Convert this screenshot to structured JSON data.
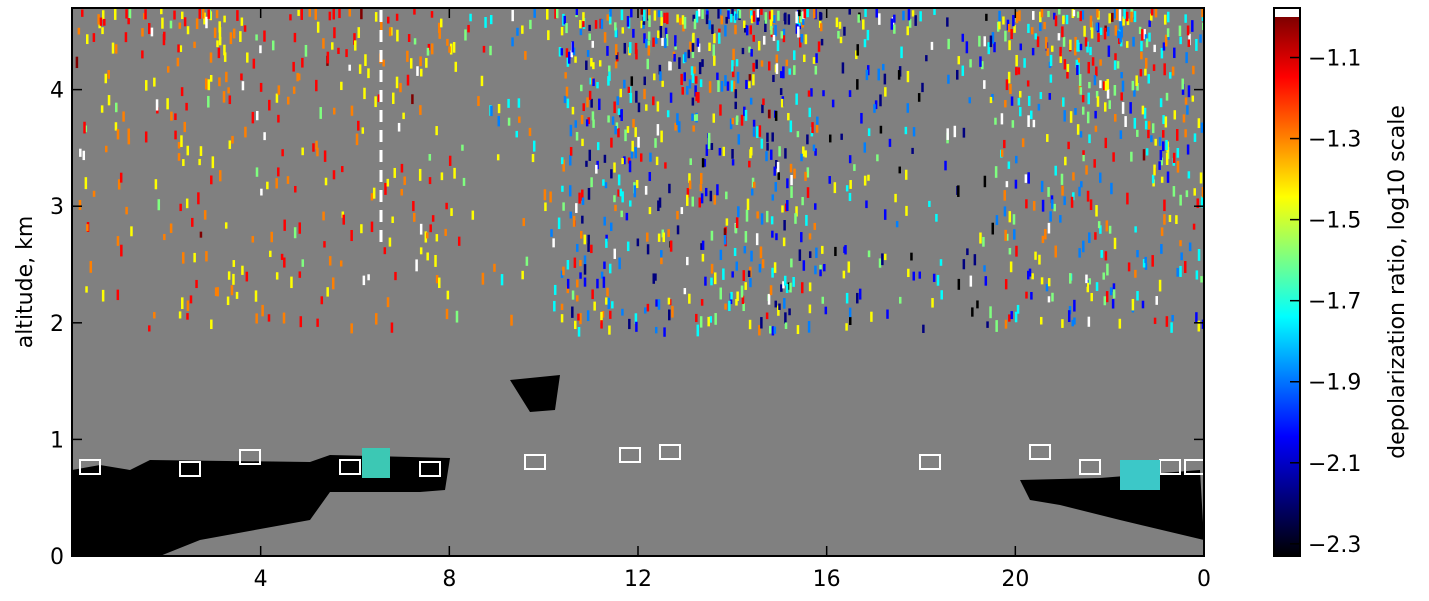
{
  "chart_data": {
    "type": "heatmap",
    "ylabel": "altitude, km",
    "xlim": [
      0,
      24
    ],
    "xticks": [
      4,
      8,
      12,
      16,
      20,
      {
        "value": 24,
        "label": "0"
      }
    ],
    "ylim": [
      0,
      4.7
    ],
    "yticks": [
      0,
      1,
      2,
      3,
      4
    ],
    "colorbar": {
      "label": "depolarization ratio, log10 scale",
      "lim": [
        -2.33,
        -1.0
      ],
      "ticks": [
        {
          "value": -1.1,
          "label": "−1.1"
        },
        {
          "value": -1.3,
          "label": "−1.3"
        },
        {
          "value": -1.5,
          "label": "−1.5"
        },
        {
          "value": -1.7,
          "label": "−1.7"
        },
        {
          "value": -1.9,
          "label": "−1.9"
        },
        {
          "value": -2.1,
          "label": "−2.1"
        },
        {
          "value": -2.3,
          "label": "−2.3"
        }
      ],
      "colors": [
        "#000000",
        "#00007f",
        "#0000ff",
        "#007fff",
        "#00ffff",
        "#7fff7f",
        "#ffff00",
        "#ff7f00",
        "#ff0000",
        "#7f0000"
      ],
      "over_color": "#ffffff"
    },
    "background_color": "#808080"
  }
}
